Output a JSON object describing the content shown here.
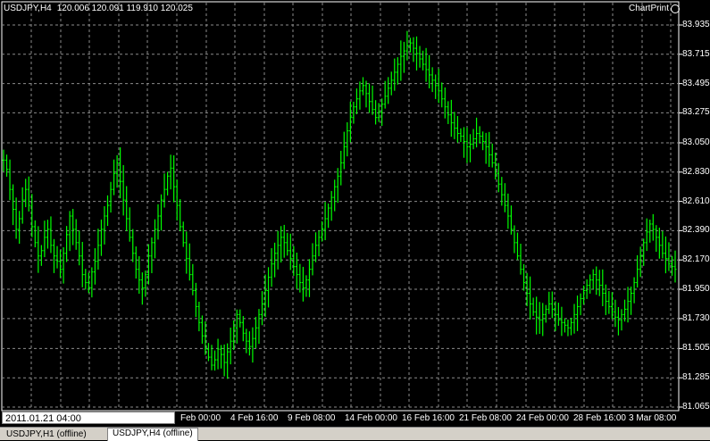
{
  "window": {
    "symbol": "USDJPY,H4",
    "ohlc": "120.006 120.091 119.910 120.025",
    "chartprint": "ChartPrint"
  },
  "date_input": {
    "value": "2011.01.21 04:00"
  },
  "tabs": [
    {
      "label": "USDJPY,H1 (offline)",
      "active": false
    },
    {
      "label": "USDJPY,H4 (offline)",
      "active": true
    }
  ],
  "colors": {
    "background": "#000000",
    "candle": "#00ff00",
    "grid": "#8c8c8c",
    "text": "#ffffff"
  },
  "chart_data": {
    "type": "candlestick",
    "y_ticks": [
      "83.935",
      "83.715",
      "83.495",
      "83.275",
      "83.050",
      "82.830",
      "82.610",
      "82.390",
      "82.170",
      "81.950",
      "81.730",
      "81.505",
      "81.285",
      "81.065"
    ],
    "x_ticks": [
      "Feb 00:00",
      "4 Feb 16:00",
      "9 Feb 08:00",
      "14 Feb 00:00",
      "16 Feb 16:00",
      "21 Feb 08:00",
      "24 Feb 00:00",
      "28 Feb 16:00",
      "3 Mar 08:00"
    ],
    "ylim": [
      81.065,
      83.935
    ],
    "close_series": [
      82.92,
      82.85,
      82.7,
      82.55,
      82.4,
      82.48,
      82.62,
      82.7,
      82.58,
      82.42,
      82.3,
      82.2,
      82.24,
      82.34,
      82.4,
      82.28,
      82.2,
      82.16,
      82.1,
      82.22,
      82.36,
      82.5,
      82.4,
      82.3,
      82.2,
      82.06,
      82.0,
      81.96,
      82.08,
      82.16,
      82.28,
      82.4,
      82.5,
      82.58,
      82.7,
      82.82,
      82.9,
      82.76,
      82.62,
      82.48,
      82.34,
      82.22,
      82.1,
      82.02,
      81.96,
      82.06,
      82.2,
      82.3,
      82.4,
      82.5,
      82.62,
      82.7,
      82.8,
      82.86,
      82.72,
      82.58,
      82.42,
      82.3,
      82.18,
      82.06,
      81.94,
      81.82,
      81.7,
      81.6,
      81.5,
      81.44,
      81.38,
      81.42,
      81.5,
      81.46,
      81.4,
      81.48,
      81.56,
      81.66,
      81.76,
      81.7,
      81.62,
      81.56,
      81.52,
      81.58,
      81.66,
      81.76,
      81.84,
      81.94,
      82.04,
      82.14,
      82.22,
      82.28,
      82.34,
      82.3,
      82.24,
      82.18,
      82.12,
      82.06,
      82.0,
      81.96,
      82.02,
      82.1,
      82.2,
      82.28,
      82.34,
      82.4,
      82.48,
      82.56,
      82.64,
      82.72,
      82.8,
      82.9,
      83.02,
      83.14,
      83.24,
      83.32,
      83.38,
      83.44,
      83.48,
      83.42,
      83.36,
      83.3,
      83.24,
      83.28,
      83.34,
      83.4,
      83.46,
      83.52,
      83.58,
      83.64,
      83.7,
      83.74,
      83.78,
      83.8,
      83.76,
      83.72,
      83.68,
      83.64,
      83.6,
      83.56,
      83.52,
      83.48,
      83.44,
      83.38,
      83.32,
      83.26,
      83.2,
      83.16,
      83.12,
      83.1,
      83.06,
      83.02,
      83.04,
      83.08,
      83.12,
      83.1,
      83.06,
      83.02,
      82.96,
      82.9,
      82.82,
      82.74,
      82.66,
      82.58,
      82.5,
      82.4,
      82.3,
      82.2,
      82.1,
      82.0,
      81.92,
      81.84,
      81.78,
      81.74,
      81.72,
      81.76,
      81.8,
      81.84,
      81.8,
      81.76,
      81.72,
      81.7,
      81.68,
      81.66,
      81.7,
      81.76,
      81.82,
      81.88,
      81.94,
      81.98,
      82.02,
      82.06,
      82.02,
      81.98,
      81.92,
      81.86,
      81.82,
      81.78,
      81.74,
      81.72,
      81.76,
      81.8,
      81.86,
      81.92,
      82.0,
      82.1,
      82.2,
      82.3,
      82.38,
      82.44,
      82.4,
      82.34,
      82.28,
      82.22,
      82.18,
      82.14,
      82.12,
      82.1
    ]
  }
}
